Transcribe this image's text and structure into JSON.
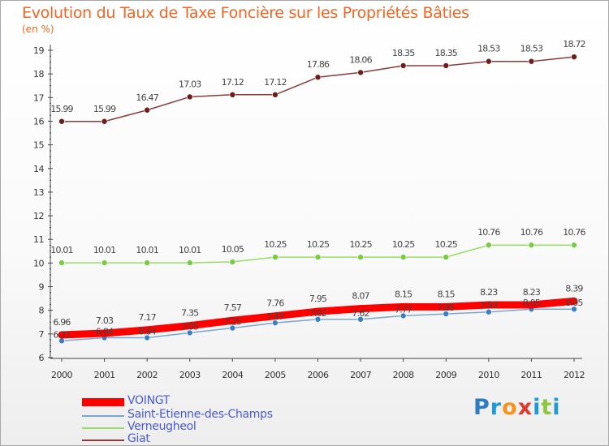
{
  "title": "Evolution du Taux de Taxe Foncière sur les Propriétés Bâties",
  "unit_label": "(en %)",
  "brand": {
    "text": "Proxiti",
    "letters": [
      "P",
      "r",
      "o",
      "x",
      "i",
      "t",
      "i"
    ],
    "letter_colors": [
      "#2e7bbf",
      "#1e9ad6",
      "#f7941d",
      "#e03a2f",
      "#1e9ad6",
      "#8dc63f",
      "#1e9ad6"
    ]
  },
  "colors": {
    "axis": "#444444",
    "tick_label": "#333333",
    "value_label": "#444444"
  },
  "chart_data": {
    "type": "line",
    "x": [
      "2000",
      "2001",
      "2002",
      "2003",
      "2004",
      "2005",
      "2006",
      "2007",
      "2008",
      "2009",
      "2010",
      "2011",
      "2012"
    ],
    "ylim": [
      6,
      19
    ],
    "yticks": [
      "6",
      "7",
      "8",
      "9",
      "10",
      "11",
      "12",
      "13",
      "14",
      "15",
      "16",
      "17",
      "18",
      "19"
    ],
    "grid": false,
    "legend_position": "bottom-left",
    "series": [
      {
        "name": "VOINGT",
        "color": "#ff0000",
        "style": "thick",
        "values": [
          6.96,
          7.03,
          7.17,
          7.35,
          7.57,
          7.76,
          7.95,
          8.07,
          8.15,
          8.15,
          8.23,
          8.23,
          8.39
        ],
        "labels": [
          "6.96",
          "7.03",
          "7.17",
          "7.35",
          "7.57",
          "7.76",
          "7.95",
          "8.07",
          "8.15",
          "8.15",
          "8.23",
          "8.23",
          "8.39"
        ]
      },
      {
        "name": "Saint-Etienne-des-Champs",
        "color": "#7ba7cf",
        "marker": "#3a7fc4",
        "values": [
          6.71,
          6.84,
          6.84,
          7.05,
          7.25,
          7.47,
          7.62,
          7.62,
          7.77,
          7.85,
          7.93,
          8.05,
          8.05
        ],
        "labels": [
          "6.71",
          "6.84",
          "6.84",
          "7.05",
          "7.25",
          "7.47",
          "7.62",
          "7.62",
          "7.77",
          "7.85",
          "7.93",
          "8.05",
          "8.05"
        ]
      },
      {
        "name": "Verneugheol",
        "color": "#99dd66",
        "marker": "#77cc44",
        "values": [
          10.01,
          10.01,
          10.01,
          10.01,
          10.05,
          10.25,
          10.25,
          10.25,
          10.25,
          10.25,
          10.76,
          10.76,
          10.76
        ],
        "labels": [
          "10.01",
          "10.01",
          "10.01",
          "10.01",
          "10.05",
          "10.25",
          "10.25",
          "10.25",
          "10.25",
          "10.25",
          "10.76",
          "10.76",
          "10.76"
        ]
      },
      {
        "name": "Giat",
        "color": "#8a3b3b",
        "marker": "#6e1d1d",
        "values": [
          15.99,
          15.99,
          16.47,
          17.03,
          17.12,
          17.12,
          17.86,
          18.06,
          18.35,
          18.35,
          18.53,
          18.53,
          18.72
        ],
        "labels": [
          "15.99",
          "15.99",
          "16.47",
          "17.03",
          "17.12",
          "17.12",
          "17.86",
          "18.06",
          "18.35",
          "18.35",
          "18.53",
          "18.53",
          "18.72"
        ]
      }
    ]
  }
}
